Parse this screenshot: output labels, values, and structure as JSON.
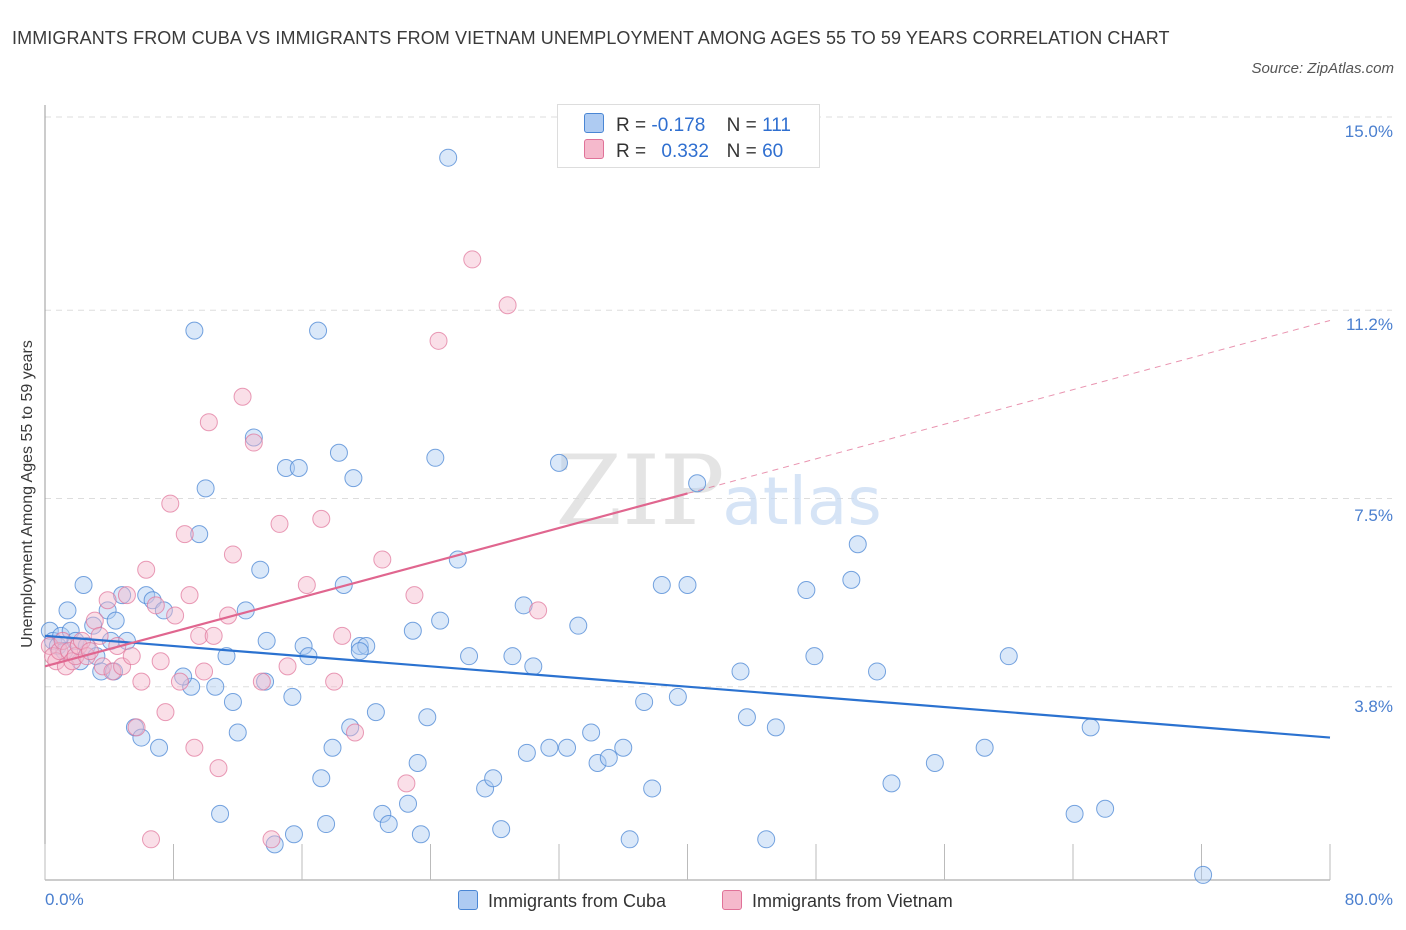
{
  "title": "IMMIGRANTS FROM CUBA VS IMMIGRANTS FROM VIETNAM UNEMPLOYMENT AMONG AGES 55 TO 59 YEARS CORRELATION CHART",
  "source": "Source: ZipAtlas.com",
  "watermark": {
    "zip": "ZIP",
    "atlas": "atlas"
  },
  "legend": {
    "cuba": {
      "r_label": "R =",
      "r_value": "-0.178",
      "n_label": "N =",
      "n_value": "111"
    },
    "vietnam": {
      "r_label": "R =",
      "r_value": "0.332",
      "n_label": "N =",
      "n_value": "60"
    }
  },
  "bottom_legend": {
    "cuba": "Immigrants from Cuba",
    "vietnam": "Immigrants from Vietnam"
  },
  "colors": {
    "cuba": "#4a86d4",
    "cuba_fill": "#aecbf2",
    "vietnam": "#e07298",
    "vietnam_fill": "#f5b9cc",
    "cuba_line": "#2b72d0",
    "vietnam_line": "#e0668f",
    "tick": "#4a7fcf",
    "grid": "#dddddd"
  },
  "chart_data": {
    "type": "scatter",
    "xlabel": "",
    "ylabel": "Unemployment Among Ages 55 to 59 years",
    "xlim": [
      0,
      80
    ],
    "ylim": [
      0,
      15
    ],
    "x_tick_labels": [
      "0.0%",
      "80.0%"
    ],
    "y_ticks": [
      3.8,
      7.5,
      11.2,
      15.0
    ],
    "y_tick_labels": [
      "3.8%",
      "7.5%",
      "11.2%",
      "15.0%"
    ],
    "series": [
      {
        "name": "Immigrants from Cuba",
        "r": -0.178,
        "n": 111,
        "trend": {
          "x0": 0,
          "y0": 4.8,
          "x1": 80,
          "y1": 2.8
        },
        "points": [
          [
            0.3,
            4.9
          ],
          [
            0.5,
            4.7
          ],
          [
            0.8,
            4.6
          ],
          [
            1.0,
            4.8
          ],
          [
            1.2,
            4.5
          ],
          [
            1.4,
            5.3
          ],
          [
            1.6,
            4.9
          ],
          [
            1.9,
            4.7
          ],
          [
            2.2,
            4.3
          ],
          [
            2.4,
            5.8
          ],
          [
            2.6,
            4.6
          ],
          [
            3.0,
            5.0
          ],
          [
            3.2,
            4.4
          ],
          [
            3.5,
            4.1
          ],
          [
            3.9,
            5.3
          ],
          [
            4.1,
            4.7
          ],
          [
            4.4,
            5.1
          ],
          [
            4.8,
            5.6
          ],
          [
            5.1,
            4.7
          ],
          [
            5.6,
            3.0
          ],
          [
            6.0,
            2.8
          ],
          [
            6.3,
            5.6
          ],
          [
            6.7,
            5.5
          ],
          [
            7.1,
            2.6
          ],
          [
            7.4,
            5.3
          ],
          [
            9.3,
            10.8
          ],
          [
            9.6,
            6.8
          ],
          [
            10.0,
            7.7
          ],
          [
            10.6,
            3.8
          ],
          [
            10.9,
            1.3
          ],
          [
            11.3,
            4.4
          ],
          [
            11.7,
            3.5
          ],
          [
            12.0,
            2.9
          ],
          [
            12.5,
            5.3
          ],
          [
            13.0,
            8.7
          ],
          [
            13.4,
            6.1
          ],
          [
            13.8,
            4.7
          ],
          [
            14.3,
            0.7
          ],
          [
            15.0,
            8.1
          ],
          [
            15.5,
            0.9
          ],
          [
            15.8,
            8.1
          ],
          [
            16.1,
            4.6
          ],
          [
            16.4,
            4.4
          ],
          [
            17.0,
            10.8
          ],
          [
            17.2,
            2.0
          ],
          [
            17.5,
            1.1
          ],
          [
            17.9,
            2.6
          ],
          [
            18.3,
            8.4
          ],
          [
            18.6,
            5.8
          ],
          [
            19.0,
            3.0
          ],
          [
            19.2,
            7.9
          ],
          [
            19.6,
            4.6
          ],
          [
            20.0,
            4.6
          ],
          [
            20.6,
            3.3
          ],
          [
            21.0,
            1.3
          ],
          [
            21.4,
            1.1
          ],
          [
            22.6,
            1.5
          ],
          [
            22.9,
            4.9
          ],
          [
            23.2,
            2.3
          ],
          [
            23.4,
            0.9
          ],
          [
            23.8,
            3.2
          ],
          [
            24.3,
            8.3
          ],
          [
            24.6,
            5.1
          ],
          [
            25.1,
            14.2
          ],
          [
            25.7,
            6.3
          ],
          [
            26.4,
            4.4
          ],
          [
            27.4,
            1.8
          ],
          [
            27.9,
            2.0
          ],
          [
            28.4,
            1.0
          ],
          [
            29.1,
            4.4
          ],
          [
            29.8,
            5.4
          ],
          [
            30.0,
            2.5
          ],
          [
            30.4,
            4.2
          ],
          [
            31.4,
            2.6
          ],
          [
            32.0,
            8.2
          ],
          [
            32.5,
            2.6
          ],
          [
            33.2,
            5.0
          ],
          [
            34.0,
            2.9
          ],
          [
            34.4,
            2.3
          ],
          [
            35.1,
            2.4
          ],
          [
            36.0,
            2.6
          ],
          [
            36.4,
            0.8
          ],
          [
            37.3,
            3.5
          ],
          [
            37.8,
            1.8
          ],
          [
            38.4,
            5.8
          ],
          [
            39.4,
            3.6
          ],
          [
            40.0,
            5.8
          ],
          [
            40.6,
            7.8
          ],
          [
            43.3,
            4.1
          ],
          [
            43.7,
            3.2
          ],
          [
            44.9,
            0.8
          ],
          [
            45.5,
            3.0
          ],
          [
            47.4,
            5.7
          ],
          [
            47.9,
            4.4
          ],
          [
            50.2,
            5.9
          ],
          [
            50.6,
            6.6
          ],
          [
            51.8,
            4.1
          ],
          [
            52.7,
            1.9
          ],
          [
            55.4,
            2.3
          ],
          [
            58.5,
            2.6
          ],
          [
            64.1,
            1.3
          ],
          [
            65.1,
            3.0
          ],
          [
            66.0,
            1.4
          ],
          [
            72.1,
            0.1
          ],
          [
            15.4,
            3.6
          ],
          [
            19.6,
            4.5
          ],
          [
            4.3,
            4.1
          ],
          [
            9.1,
            3.8
          ],
          [
            8.6,
            4.0
          ],
          [
            13.7,
            3.9
          ],
          [
            60.0,
            4.4
          ]
        ]
      },
      {
        "name": "Immigrants from Vietnam",
        "r": 0.332,
        "n": 60,
        "trend": {
          "x0": 0,
          "y0": 4.2,
          "x1": 40,
          "y1": 7.6,
          "dashed_to_x": 80,
          "dashed_to_y": 11.0
        },
        "points": [
          [
            0.3,
            4.6
          ],
          [
            0.5,
            4.4
          ],
          [
            0.7,
            4.3
          ],
          [
            0.9,
            4.5
          ],
          [
            1.1,
            4.7
          ],
          [
            1.3,
            4.2
          ],
          [
            1.5,
            4.5
          ],
          [
            1.7,
            4.3
          ],
          [
            1.9,
            4.4
          ],
          [
            2.1,
            4.6
          ],
          [
            2.3,
            4.7
          ],
          [
            2.6,
            4.4
          ],
          [
            2.8,
            4.5
          ],
          [
            3.1,
            5.1
          ],
          [
            3.4,
            4.8
          ],
          [
            3.6,
            4.2
          ],
          [
            3.9,
            5.5
          ],
          [
            4.2,
            4.1
          ],
          [
            4.5,
            4.6
          ],
          [
            4.8,
            4.2
          ],
          [
            5.1,
            5.6
          ],
          [
            5.4,
            4.4
          ],
          [
            5.7,
            3.0
          ],
          [
            6.0,
            3.9
          ],
          [
            6.3,
            6.1
          ],
          [
            6.6,
            0.8
          ],
          [
            6.9,
            5.4
          ],
          [
            7.2,
            4.3
          ],
          [
            7.5,
            3.3
          ],
          [
            7.8,
            7.4
          ],
          [
            8.1,
            5.2
          ],
          [
            8.4,
            3.9
          ],
          [
            8.7,
            6.8
          ],
          [
            9.0,
            5.6
          ],
          [
            9.3,
            2.6
          ],
          [
            9.6,
            4.8
          ],
          [
            9.9,
            4.1
          ],
          [
            10.2,
            9.0
          ],
          [
            10.5,
            4.8
          ],
          [
            10.8,
            2.2
          ],
          [
            11.4,
            5.2
          ],
          [
            11.7,
            6.4
          ],
          [
            12.3,
            9.5
          ],
          [
            13.0,
            8.6
          ],
          [
            13.5,
            3.9
          ],
          [
            14.1,
            0.8
          ],
          [
            14.6,
            7.0
          ],
          [
            15.1,
            4.2
          ],
          [
            16.3,
            5.8
          ],
          [
            17.2,
            7.1
          ],
          [
            18.0,
            3.9
          ],
          [
            18.5,
            4.8
          ],
          [
            19.3,
            2.9
          ],
          [
            21.0,
            6.3
          ],
          [
            22.5,
            1.9
          ],
          [
            23.0,
            5.6
          ],
          [
            24.5,
            10.6
          ],
          [
            26.6,
            12.2
          ],
          [
            28.8,
            11.3
          ],
          [
            30.7,
            5.3
          ]
        ]
      }
    ]
  }
}
